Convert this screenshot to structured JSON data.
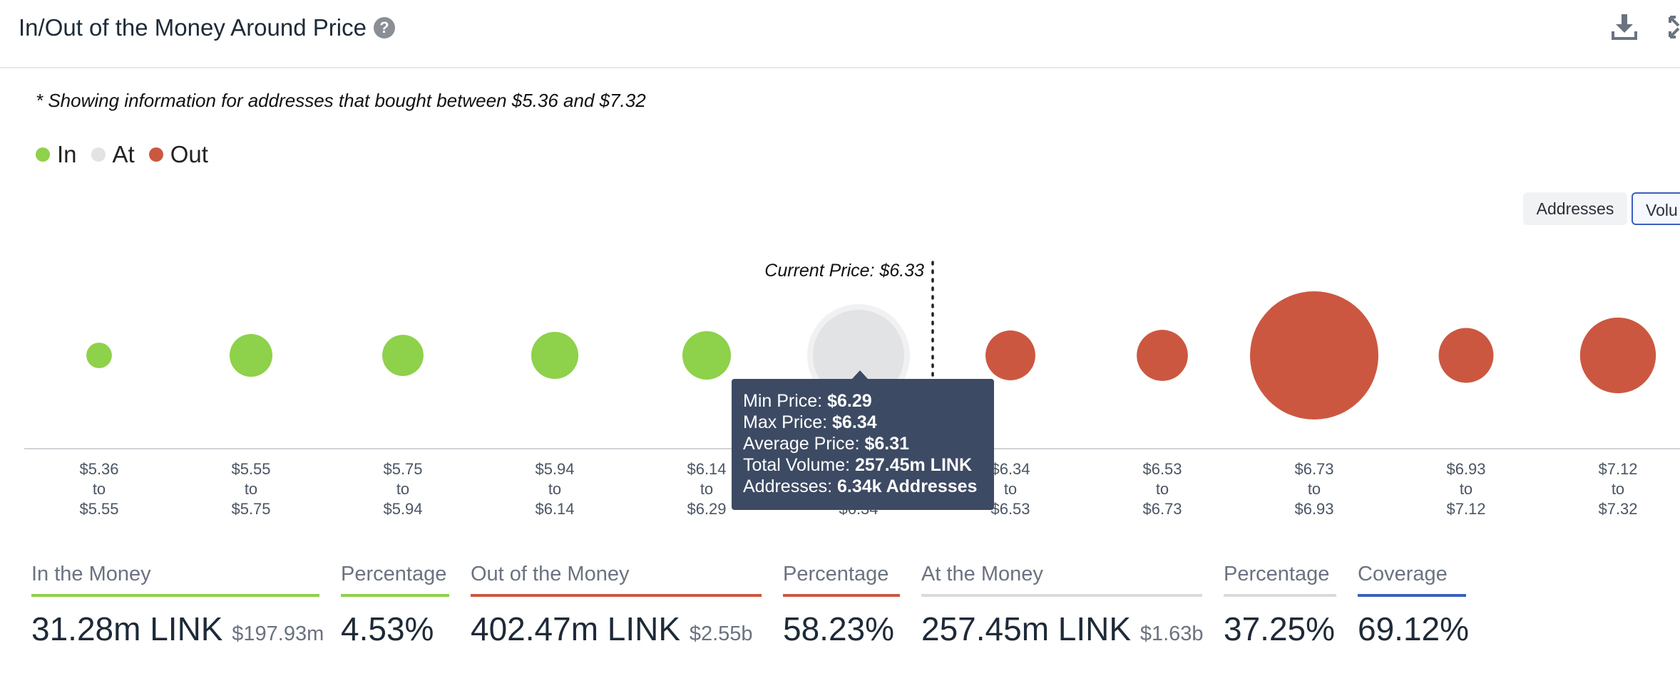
{
  "header": {
    "title": "In/Out of the Money Around Price"
  },
  "note": "* Showing information for addresses that bought between $5.36 and $7.32",
  "legend": [
    {
      "label": "In",
      "color": "#8ed14a"
    },
    {
      "label": "At",
      "color": "#e2e3e5"
    },
    {
      "label": "Out",
      "color": "#cc5741"
    }
  ],
  "toggles": {
    "addresses": "Addresses",
    "volume": "Volu"
  },
  "chart_data": {
    "type": "scatter",
    "current_price_label": "Current Price: $6.33",
    "current_price": 6.33,
    "buckets": [
      {
        "from": "$5.36",
        "to": "$5.55",
        "status": "In",
        "size": 2.5
      },
      {
        "from": "$5.55",
        "to": "$5.75",
        "status": "In",
        "size": 7
      },
      {
        "from": "$5.75",
        "to": "$5.94",
        "status": "In",
        "size": 6.5
      },
      {
        "from": "$5.94",
        "to": "$6.14",
        "status": "In",
        "size": 8.5
      },
      {
        "from": "$6.14",
        "to": "$6.29",
        "status": "In",
        "size": 9
      },
      {
        "from": "$6.29",
        "to": "$6.34",
        "status": "At",
        "size": 36
      },
      {
        "from": "$6.34",
        "to": "$6.53",
        "status": "Out",
        "size": 9.5
      },
      {
        "from": "$6.53",
        "to": "$6.73",
        "status": "Out",
        "size": 10
      },
      {
        "from": "$6.73",
        "to": "$6.93",
        "status": "Out",
        "size": 63
      },
      {
        "from": "$6.93",
        "to": "$7.12",
        "status": "Out",
        "size": 11.5
      },
      {
        "from": "$7.12",
        "to": "$7.32",
        "status": "Out",
        "size": 22
      }
    ],
    "tick_to": "to",
    "colors": {
      "In": "#8ed14a",
      "At": "#e2e3e5",
      "Out": "#cc5741"
    }
  },
  "tooltip": {
    "min_label": "Min Price: ",
    "min_value": "$6.29",
    "max_label": "Max Price: ",
    "max_value": "$6.34",
    "avg_label": "Average Price: ",
    "avg_value": "$6.31",
    "vol_label": "Total Volume: ",
    "vol_value": "257.45m LINK",
    "addr_label": "Addresses: ",
    "addr_value": "6.34k Addresses"
  },
  "stats": {
    "in": {
      "label": "In the Money",
      "value": "31.28m LINK",
      "sub": "$197.93m",
      "color": "#8ed14a"
    },
    "in_pct": {
      "label": "Percentage",
      "value": "4.53%",
      "color": "#8ed14a"
    },
    "out": {
      "label": "Out of the Money",
      "value": "402.47m LINK",
      "sub": "$2.55b",
      "color": "#cc5741"
    },
    "out_pct": {
      "label": "Percentage",
      "value": "58.23%",
      "color": "#cc5741"
    },
    "at": {
      "label": "At the Money",
      "value": "257.45m LINK",
      "sub": "$1.63b",
      "color": "#d9dadd"
    },
    "at_pct": {
      "label": "Percentage",
      "value": "37.25%",
      "color": "#d9dadd"
    },
    "coverage": {
      "label": "Coverage",
      "value": "69.12%",
      "color": "#3a5fbf"
    }
  }
}
